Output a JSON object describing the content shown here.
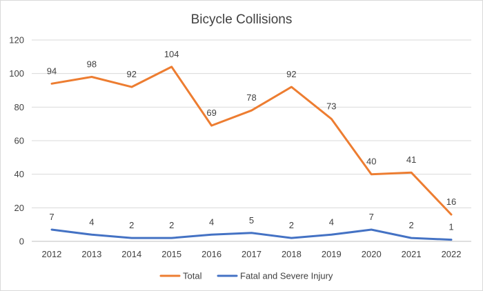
{
  "chart_data": {
    "type": "line",
    "title": "Bicycle Collisions",
    "xlabel": "",
    "ylabel": "",
    "categories": [
      "2012",
      "2013",
      "2014",
      "2015",
      "2016",
      "2017",
      "2018",
      "2019",
      "2020",
      "2021",
      "2022"
    ],
    "ylim": [
      0,
      120
    ],
    "yticks": [
      0,
      20,
      40,
      60,
      80,
      100,
      120
    ],
    "grid": true,
    "legend_position": "bottom",
    "series": [
      {
        "name": "Total",
        "color": "#ED7D31",
        "values": [
          94,
          98,
          92,
          104,
          69,
          78,
          92,
          73,
          40,
          41,
          16
        ],
        "labels": [
          "94",
          "98",
          "92",
          "104",
          "69",
          "78",
          "92",
          "73",
          "40",
          "41",
          "16"
        ]
      },
      {
        "name": "Fatal and Severe Injury",
        "color": "#4472C4",
        "values": [
          7,
          4,
          2,
          2,
          4,
          5,
          2,
          4,
          7,
          2,
          1
        ],
        "labels": [
          "7",
          "4",
          "2",
          "2",
          "4",
          "5",
          "2",
          "4",
          "7",
          "2",
          "1"
        ]
      }
    ]
  }
}
